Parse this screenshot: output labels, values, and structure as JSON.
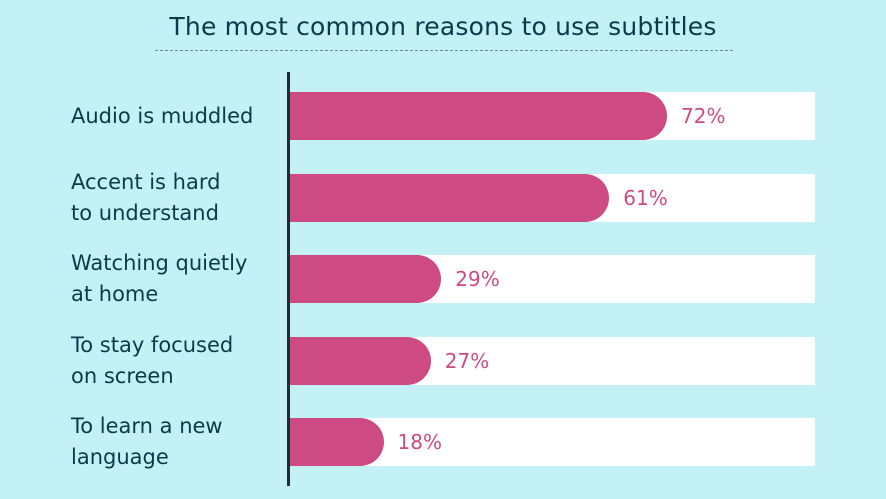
{
  "title": "The most common reasons to use subtitles",
  "colors": {
    "background": "#c3f1f6",
    "bar": "#cd4a82",
    "track": "#ffffff",
    "text": "#0b3a4b"
  },
  "chart_data": {
    "type": "bar",
    "orientation": "horizontal",
    "title": "The most common reasons to use subtitles",
    "categories": [
      "Audio is muddled",
      "Accent is hard\nto understand",
      "Watching quietly\nat home",
      "To stay focused\non screen",
      "To learn a new\nlanguage"
    ],
    "values": [
      72,
      61,
      29,
      27,
      18
    ],
    "value_labels": [
      "72%",
      "61%",
      "29%",
      "27%",
      "18%"
    ],
    "xlim": [
      0,
      100
    ],
    "grid": false
  }
}
